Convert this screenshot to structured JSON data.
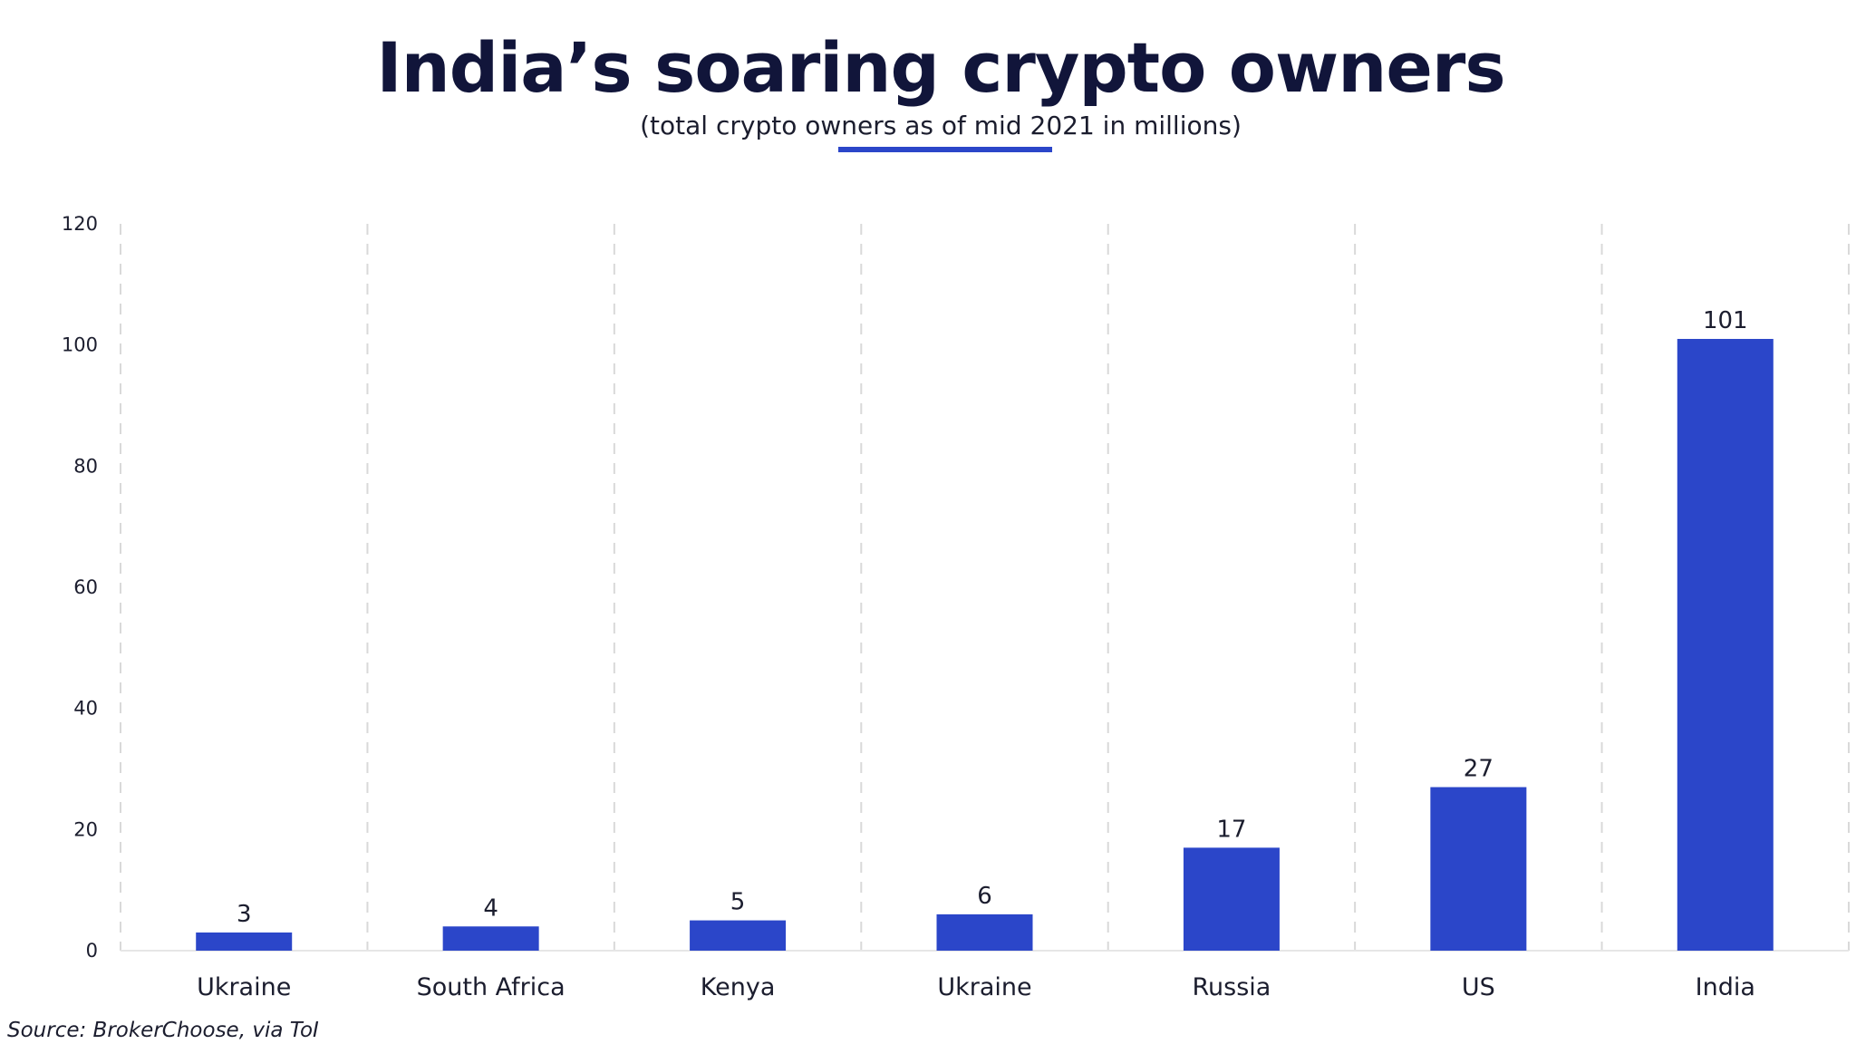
{
  "chart_data": {
    "type": "bar",
    "title": "India’s soaring crypto owners",
    "subtitle": "(total crypto owners as of mid 2021 in millions)",
    "categories": [
      "Ukraine",
      "South Africa",
      "Kenya",
      "Ukraine",
      "Russia",
      "US",
      "India"
    ],
    "values": [
      3,
      4,
      5,
      6,
      17,
      27,
      101
    ],
    "data_labels": [
      "3",
      "4",
      "5",
      "6",
      "17",
      "27",
      "101"
    ],
    "ylim": [
      0,
      120
    ],
    "yticks": [
      0,
      20,
      40,
      60,
      80,
      100,
      120
    ],
    "ytick_labels": [
      "0",
      "20",
      "40",
      "60",
      "80",
      "100",
      "120"
    ],
    "xlabel": "",
    "ylabel": "",
    "grid": "vertical dashed",
    "legend": "none",
    "bar_color": "#2b46c9",
    "source": "Source: BrokerChoose, via ToI"
  }
}
